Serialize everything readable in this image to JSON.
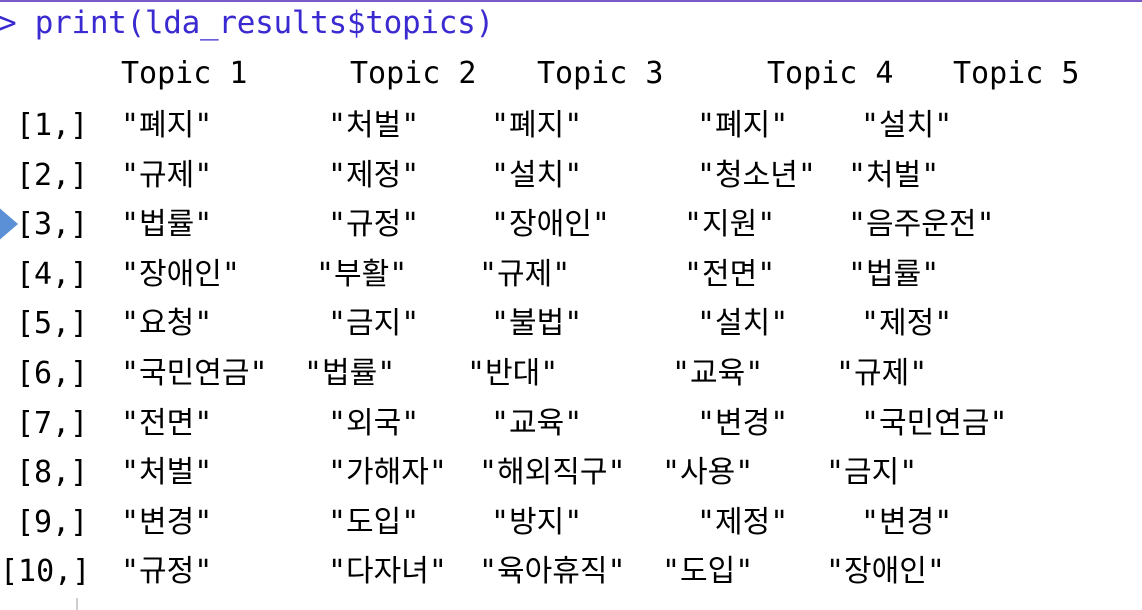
{
  "command": "> print(lda_results$topics)",
  "columns": [
    "Topic 1",
    "Topic 2",
    "Topic 3",
    "Topic 4",
    "Topic 5"
  ],
  "rows": [
    {
      "index": "[1,]",
      "cells": [
        "\"폐지\"",
        "\"처벌\"",
        "\"폐지\"",
        "\"폐지\"",
        "\"설치\""
      ]
    },
    {
      "index": "[2,]",
      "cells": [
        "\"규제\"",
        "\"제정\"",
        "\"설치\"",
        "\"청소년\"",
        "\"처벌\""
      ]
    },
    {
      "index": "[3,]",
      "cells": [
        "\"법률\"",
        "\"규정\"",
        "\"장애인\"",
        "\"지원\"",
        "\"음주운전\""
      ]
    },
    {
      "index": "[4,]",
      "cells": [
        "\"장애인\"",
        "\"부활\"",
        "\"규제\"",
        "\"전면\"",
        "\"법률\""
      ]
    },
    {
      "index": "[5,]",
      "cells": [
        "\"요청\"",
        "\"금지\"",
        "\"불법\"",
        "\"설치\"",
        "\"제정\""
      ]
    },
    {
      "index": "[6,]",
      "cells": [
        "\"국민연금\"",
        "\"법률\"",
        "\"반대\"",
        "\"교육\"",
        "\"규제\""
      ]
    },
    {
      "index": "[7,]",
      "cells": [
        "\"전면\"",
        "\"외국\"",
        "\"교육\"",
        "\"변경\"",
        "\"국민연금\""
      ]
    },
    {
      "index": "[8,]",
      "cells": [
        "\"처벌\"",
        "\"가해자\"",
        "\"해외직구\"",
        "\"사용\"",
        "\"금지\""
      ]
    },
    {
      "index": "[9,]",
      "cells": [
        "\"변경\"",
        "\"도입\"",
        "\"방지\"",
        "\"제정\"",
        "\"변경\""
      ]
    },
    {
      "index": "[10,]",
      "cells": [
        "\"규정\"",
        "\"다자녀\"",
        "\"육아휴직\"",
        "\"도입\"",
        "\"장애인\""
      ]
    }
  ],
  "colors": {
    "prompt": "#3a2ad0",
    "output": "#000000",
    "marker": "#5b8fd6"
  },
  "icons": {
    "current_line_marker": "triangle-right"
  }
}
